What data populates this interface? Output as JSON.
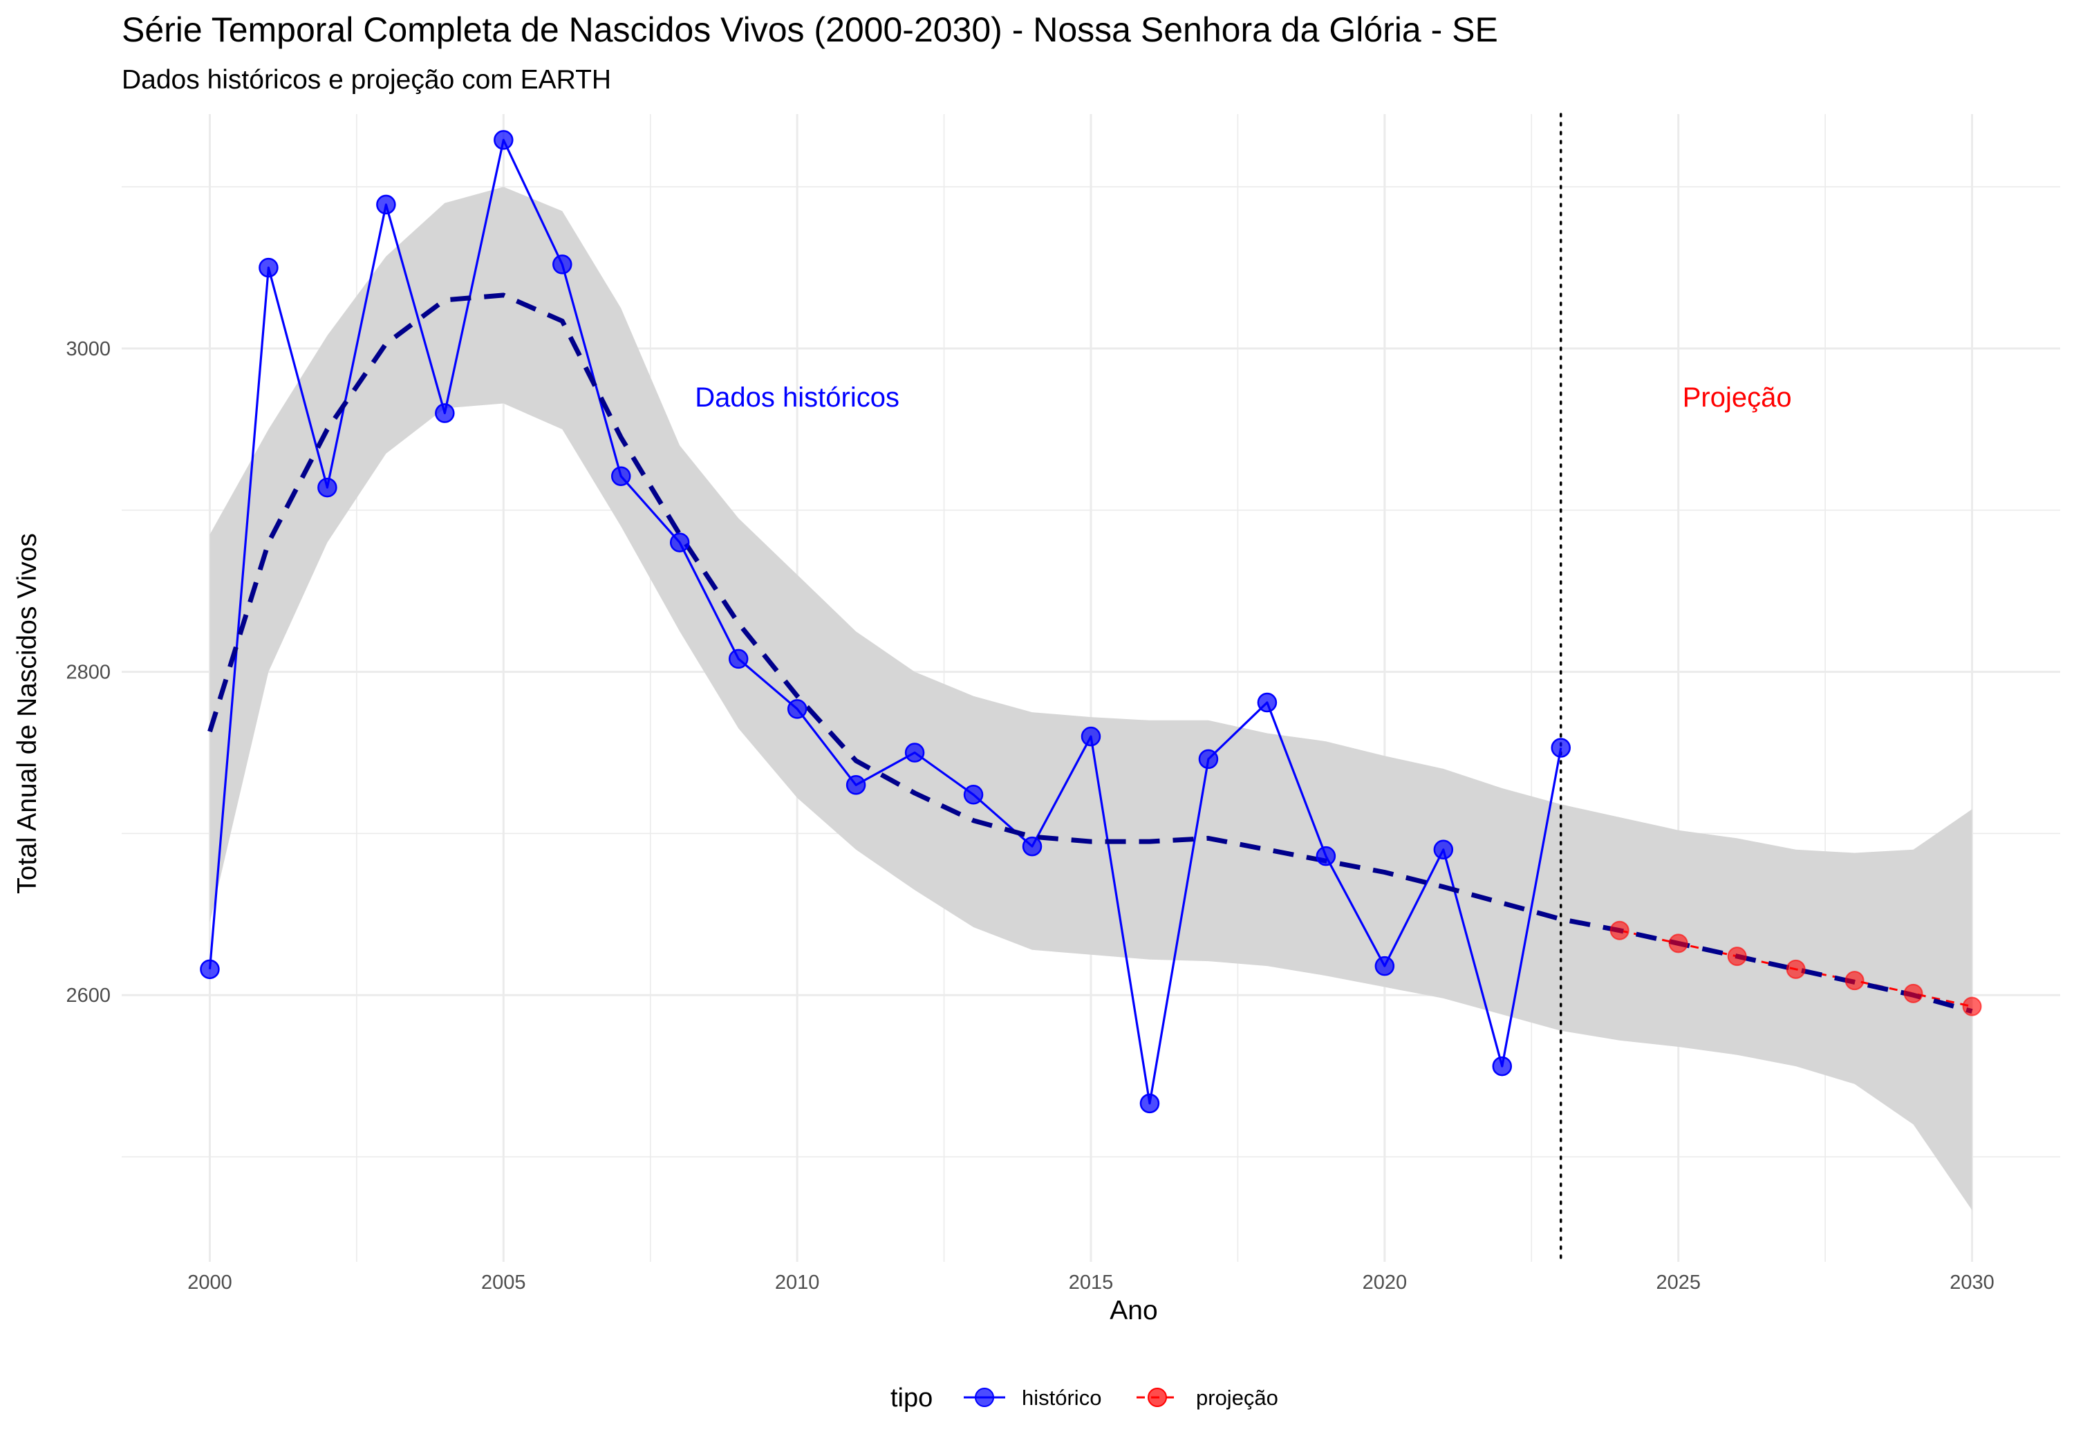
{
  "title": "Série Temporal Completa de Nascidos Vivos (2000-2030) -  Nossa Senhora da Glória - SE",
  "subtitle": "Dados históricos e projeção com EARTH",
  "chart_data": {
    "type": "line",
    "title": "Série Temporal Completa de Nascidos Vivos (2000-2030) -  Nossa Senhora da Glória - SE",
    "subtitle": "Dados históricos e projeção com EARTH",
    "xlabel": "Ano",
    "ylabel": "Total Anual de Nascidos Vivos",
    "xlim": [
      1998.5,
      2031.5
    ],
    "ylim": [
      2435,
      3145
    ],
    "x_ticks": [
      2000,
      2005,
      2010,
      2015,
      2020,
      2025,
      2030
    ],
    "y_ticks": [
      2600,
      2800,
      3000
    ],
    "grid": true,
    "legend": {
      "title": "tipo",
      "position": "bottom"
    },
    "series": [
      {
        "name": "histórico",
        "color": "#0000ff",
        "x": [
          2000,
          2001,
          2002,
          2003,
          2004,
          2005,
          2006,
          2007,
          2008,
          2009,
          2010,
          2011,
          2012,
          2013,
          2014,
          2015,
          2016,
          2017,
          2018,
          2019,
          2020,
          2021,
          2022,
          2023
        ],
        "values": [
          2616,
          3050,
          2914,
          3089,
          2960,
          3129,
          3052,
          2921,
          2880,
          2808,
          2777,
          2730,
          2750,
          2724,
          2692,
          2760,
          2533,
          2746,
          2781,
          2686,
          2618,
          2690,
          2556,
          2753
        ]
      },
      {
        "name": "projeção",
        "color": "#ff0000",
        "x": [
          2024,
          2025,
          2026,
          2027,
          2028,
          2029,
          2030
        ],
        "values": [
          2640,
          2632,
          2624,
          2616,
          2609,
          2601,
          2593
        ]
      }
    ],
    "trend": {
      "color": "#00008b",
      "x": [
        2000,
        2001,
        2002,
        2003,
        2004,
        2005,
        2006,
        2007,
        2008,
        2009,
        2010,
        2011,
        2012,
        2013,
        2014,
        2015,
        2016,
        2017,
        2018,
        2019,
        2020,
        2021,
        2022,
        2023,
        2024,
        2025,
        2026,
        2027,
        2028,
        2029,
        2030
      ],
      "values": [
        2763,
        2880,
        2950,
        3003,
        3030,
        3033,
        3017,
        2945,
        2885,
        2830,
        2785,
        2745,
        2725,
        2708,
        2698,
        2695,
        2695,
        2697,
        2690,
        2683,
        2676,
        2667,
        2657,
        2647,
        2640,
        2632,
        2624,
        2616,
        2608,
        2600,
        2590
      ]
    },
    "band": {
      "color": "#d6d6d6",
      "x": [
        2000,
        2001,
        2002,
        2003,
        2004,
        2005,
        2006,
        2007,
        2008,
        2009,
        2010,
        2011,
        2012,
        2013,
        2014,
        2015,
        2016,
        2017,
        2018,
        2019,
        2020,
        2021,
        2022,
        2023,
        2024,
        2025,
        2026,
        2027,
        2028,
        2029,
        2030
      ],
      "upper": [
        2885,
        2950,
        3008,
        3057,
        3090,
        3100,
        3085,
        3025,
        2940,
        2895,
        2860,
        2825,
        2800,
        2785,
        2775,
        2772,
        2770,
        2770,
        2762,
        2757,
        2748,
        2740,
        2728,
        2718,
        2710,
        2702,
        2697,
        2690,
        2688,
        2690,
        2715
      ],
      "lower": [
        2645,
        2800,
        2880,
        2935,
        2963,
        2966,
        2950,
        2890,
        2825,
        2765,
        2722,
        2690,
        2665,
        2642,
        2628,
        2625,
        2622,
        2621,
        2618,
        2612,
        2605,
        2598,
        2588,
        2578,
        2572,
        2568,
        2563,
        2556,
        2545,
        2520,
        2467
      ]
    },
    "vline": {
      "x": 2023,
      "style": "dotted"
    },
    "annotations": [
      {
        "text": "Dados históricos",
        "x": 2010,
        "y": 2970,
        "color": "#0000ff"
      },
      {
        "text": "Projeção",
        "x": 2026,
        "y": 2970,
        "color": "#ff0000"
      }
    ]
  }
}
